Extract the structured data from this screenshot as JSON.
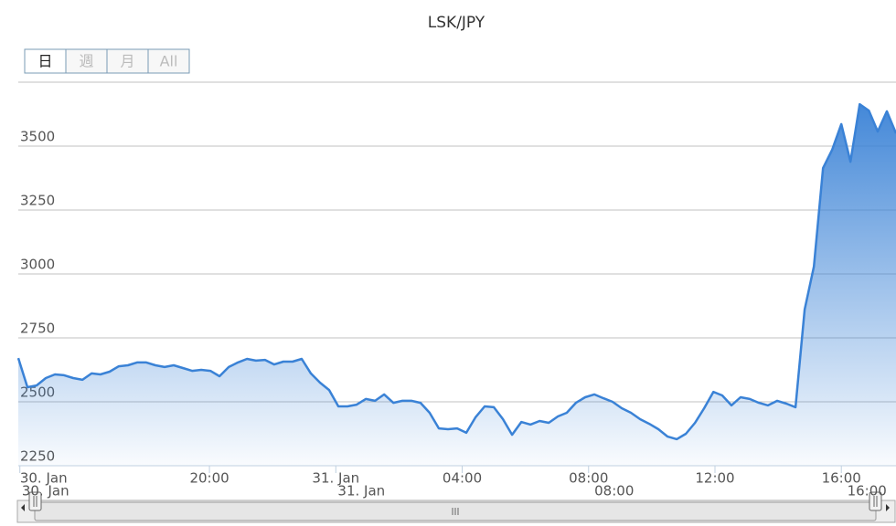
{
  "chart_data": {
    "type": "area",
    "title": "LSK/JPY",
    "range_buttons": [
      "日",
      "週",
      "月",
      "All"
    ],
    "selected_button": 0,
    "color": "#3a82d6",
    "x": [
      13.95,
      14.24,
      14.53,
      14.82,
      15.11,
      15.4,
      15.69,
      15.98,
      16.27,
      16.55,
      16.84,
      17.13,
      17.42,
      17.71,
      18.0,
      18.29,
      18.58,
      18.87,
      19.16,
      19.45,
      19.74,
      20.03,
      20.32,
      20.61,
      20.9,
      21.19,
      21.47,
      21.76,
      22.05,
      22.34,
      22.63,
      22.92,
      23.21,
      23.5,
      23.79,
      24.08,
      24.37,
      24.66,
      24.95,
      25.24,
      25.53,
      25.82,
      26.11,
      26.39,
      26.68,
      26.97,
      27.26,
      27.55,
      27.84,
      28.13,
      28.42,
      28.71,
      29.0,
      29.29,
      29.58,
      29.87,
      30.16,
      30.45,
      30.74,
      31.03,
      31.31,
      31.6,
      31.89,
      32.18,
      32.47,
      32.76,
      33.05,
      33.34,
      33.63,
      33.92,
      34.21,
      34.5,
      34.79,
      35.08,
      35.37,
      35.66,
      35.95,
      36.23,
      36.52,
      36.81,
      37.1,
      37.39,
      37.68,
      37.97,
      38.26,
      38.55,
      38.84,
      39.13,
      39.42,
      39.71,
      40.0,
      40.29,
      40.58,
      40.87,
      41.15,
      41.44,
      41.73
    ],
    "values": [
      2671,
      2557,
      2564,
      2593,
      2607,
      2604,
      2593,
      2586,
      2611,
      2607,
      2618,
      2639,
      2643,
      2654,
      2654,
      2643,
      2636,
      2643,
      2632,
      2621,
      2625,
      2621,
      2600,
      2636,
      2654,
      2668,
      2661,
      2664,
      2646,
      2657,
      2657,
      2668,
      2611,
      2575,
      2546,
      2482,
      2482,
      2489,
      2511,
      2504,
      2529,
      2496,
      2504,
      2504,
      2496,
      2457,
      2396,
      2393,
      2396,
      2379,
      2439,
      2482,
      2479,
      2432,
      2371,
      2421,
      2411,
      2425,
      2418,
      2443,
      2457,
      2496,
      2518,
      2529,
      2514,
      2500,
      2475,
      2457,
      2432,
      2414,
      2393,
      2364,
      2354,
      2375,
      2418,
      2475,
      2539,
      2525,
      2486,
      2518,
      2511,
      2496,
      2486,
      2504,
      2493,
      2479,
      2861,
      3029,
      3414,
      3486,
      3586,
      3439,
      3664,
      3639,
      3557,
      3636,
      3550
    ],
    "xlim": [
      13.95,
      41.73
    ],
    "xticks": [
      {
        "value": 14,
        "label": "30. Jan"
      },
      {
        "value": 20,
        "label": "20:00"
      },
      {
        "value": 24,
        "label": "31. Jan"
      },
      {
        "value": 28,
        "label": "04:00"
      },
      {
        "value": 32,
        "label": "08:00"
      },
      {
        "value": 36,
        "label": "12:00"
      },
      {
        "value": 40,
        "label": "16:00"
      }
    ],
    "ylim": [
      2250,
      3750
    ],
    "yticks": [
      2250,
      2500,
      2750,
      3000,
      3250,
      3500
    ],
    "grid": true,
    "navigator_xticks": [
      {
        "value": 14,
        "label": "30. Jan"
      },
      {
        "value": 24,
        "label": "31. Jan"
      },
      {
        "value": 32,
        "label": "08:00"
      },
      {
        "value": 40,
        "label": "16:00"
      }
    ]
  }
}
